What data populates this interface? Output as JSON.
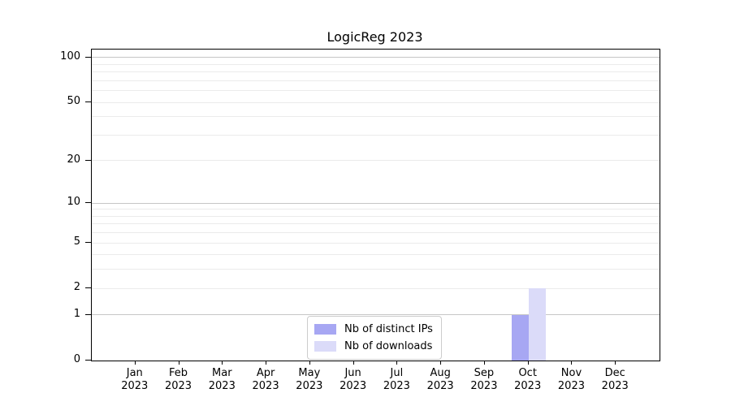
{
  "title": "LogicReg 2023",
  "legend": {
    "entries": [
      {
        "label": "Nb of distinct IPs",
        "color": "#a7a7f3"
      },
      {
        "label": "Nb of downloads",
        "color": "#dbdbf9"
      }
    ],
    "position": "lower center"
  },
  "chart_data": {
    "type": "bar",
    "title": "LogicReg 2023",
    "categories": [
      "Jan 2023",
      "Feb 2023",
      "Mar 2023",
      "Apr 2023",
      "May 2023",
      "Jun 2023",
      "Jul 2023",
      "Aug 2023",
      "Sep 2023",
      "Oct 2023",
      "Nov 2023",
      "Dec 2023"
    ],
    "months": [
      "Jan",
      "Feb",
      "Mar",
      "Apr",
      "May",
      "Jun",
      "Jul",
      "Aug",
      "Sep",
      "Oct",
      "Nov",
      "Dec"
    ],
    "year": "2023",
    "series": [
      {
        "name": "Nb of distinct IPs",
        "color": "#a7a7f3",
        "values": [
          0,
          0,
          0,
          0,
          0,
          0,
          0,
          0,
          0,
          1,
          0,
          0
        ]
      },
      {
        "name": "Nb of downloads",
        "color": "#dbdbf9",
        "values": [
          0,
          0,
          0,
          0,
          0,
          0,
          0,
          0,
          0,
          2,
          0,
          0
        ]
      }
    ],
    "xlabel": "",
    "ylabel": "",
    "yscale": "log1p",
    "ylim": [
      0,
      113
    ],
    "y_ticks": [
      0,
      1,
      2,
      5,
      10,
      20,
      50,
      100
    ],
    "y_major_gridlines": [
      1,
      10,
      100
    ],
    "y_minor_gridlines": [
      2,
      3,
      4,
      5,
      6,
      7,
      8,
      9,
      20,
      30,
      40,
      50,
      60,
      70,
      80,
      90
    ],
    "grid": "horizontal",
    "legend_position": "lower center"
  },
  "colors": {
    "major_grid": "#c6c6c6",
    "minor_grid": "#ebebeb",
    "axis": "#000000",
    "background": "#ffffff"
  }
}
